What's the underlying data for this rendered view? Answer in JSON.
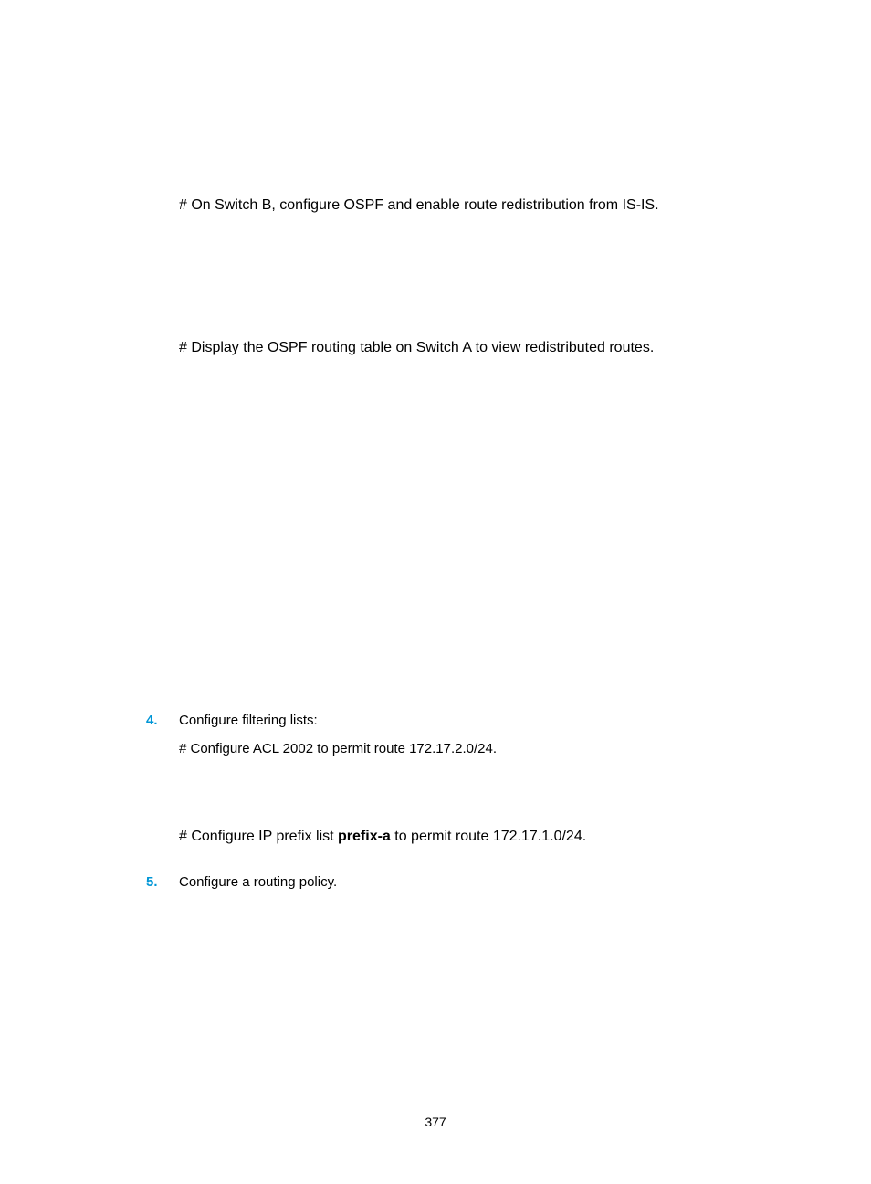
{
  "block1": {
    "text": "# On Switch B, configure OSPF and enable route redistribution from IS-IS."
  },
  "block2": {
    "text": "# Display the OSPF routing table on Switch A to view redistributed routes."
  },
  "step4": {
    "num": "4.",
    "title": "Configure filtering lists:",
    "line1": "# Configure ACL 2002 to permit route 172.17.2.0/24.",
    "line2_pre": "# Configure IP prefix list ",
    "line2_bold": "prefix-a",
    "line2_post": " to permit route 172.17.1.0/24."
  },
  "step5": {
    "num": "5.",
    "title": "Configure a routing policy."
  },
  "page_number": "377",
  "colors": {
    "accent": "#0096d6",
    "text": "#000000",
    "background": "#ffffff"
  }
}
